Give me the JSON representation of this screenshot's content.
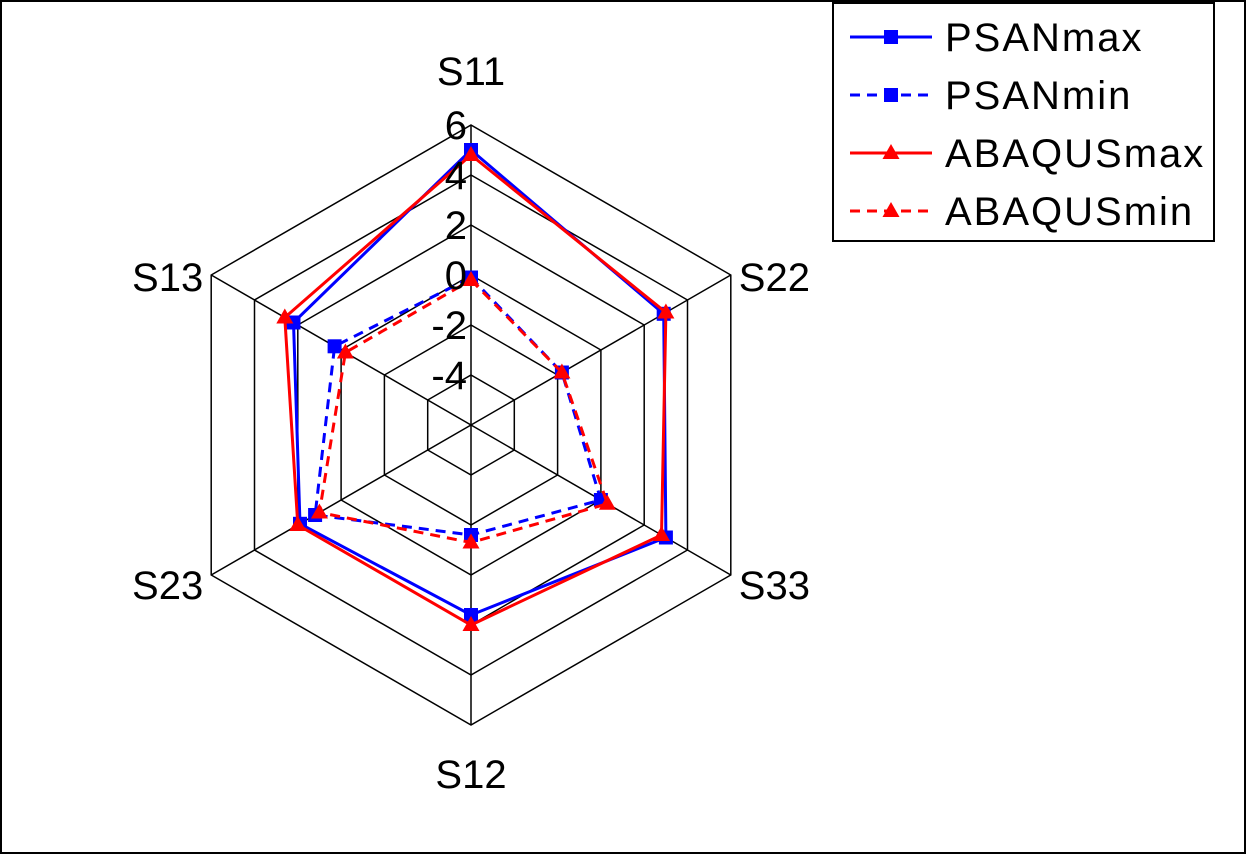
{
  "chart_data": {
    "type": "radar",
    "axes": [
      "S11",
      "S22",
      "S33",
      "S12",
      "S23",
      "S13"
    ],
    "range": [
      -6,
      6
    ],
    "ticks": [
      -4,
      -2,
      0,
      2,
      4,
      6
    ],
    "tick_labels": [
      "-4",
      "-2",
      "0",
      "2",
      "4",
      "6"
    ],
    "grid": true,
    "legend_position": "top-right",
    "series": [
      {
        "name": "PSANmax",
        "color": "#0000ff",
        "marker": "square",
        "dash": "solid",
        "values": [
          5.0,
          2.9,
          3.0,
          1.6,
          1.9,
          2.2
        ]
      },
      {
        "name": "PSANmin",
        "color": "#0000ff",
        "marker": "square",
        "dash": "dashed",
        "values": [
          -0.1,
          -1.8,
          0.0,
          -1.6,
          1.2,
          0.3
        ]
      },
      {
        "name": "ABAQUSmax",
        "color": "#ff0000",
        "marker": "triangle",
        "dash": "solid",
        "values": [
          4.8,
          3.0,
          2.8,
          2.0,
          2.0,
          2.6
        ]
      },
      {
        "name": "ABAQUSmin",
        "color": "#ff0000",
        "marker": "triangle",
        "dash": "dashed",
        "values": [
          -0.2,
          -1.8,
          0.3,
          -1.3,
          1.0,
          -0.2
        ]
      }
    ]
  }
}
